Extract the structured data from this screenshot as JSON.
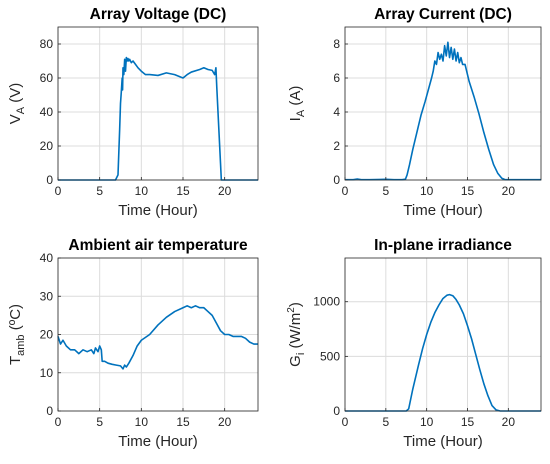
{
  "figure": {
    "background": "#ffffff",
    "line_color": "#0072BD",
    "grid": true
  },
  "chart_data": [
    {
      "type": "line",
      "title": "Array Voltage (DC)",
      "xlabel": "Time (Hour)",
      "ylabel_main": "V",
      "ylabel_sub": "A",
      "ylabel_tail": " (V)",
      "xlim": [
        0,
        24
      ],
      "ylim": [
        0,
        90
      ],
      "xticks": [
        0,
        5,
        10,
        15,
        20
      ],
      "yticks": [
        0,
        20,
        40,
        60,
        80
      ],
      "series": [
        {
          "values": [
            [
              0,
              0
            ],
            [
              6.9,
              0
            ],
            [
              7.2,
              3
            ],
            [
              7.4,
              30
            ],
            [
              7.5,
              45
            ],
            [
              7.6,
              52
            ],
            [
              7.7,
              60
            ],
            [
              7.75,
              53
            ],
            [
              7.8,
              66
            ],
            [
              7.9,
              62
            ],
            [
              8.0,
              71
            ],
            [
              8.1,
              64
            ],
            [
              8.2,
              72
            ],
            [
              8.3,
              70
            ],
            [
              8.4,
              71.5
            ],
            [
              8.5,
              70
            ],
            [
              8.6,
              71
            ],
            [
              8.8,
              69
            ],
            [
              9.0,
              70
            ],
            [
              9.3,
              68
            ],
            [
              9.6,
              66
            ],
            [
              10,
              64
            ],
            [
              10.5,
              62
            ],
            [
              11,
              62
            ],
            [
              12,
              61.5
            ],
            [
              13,
              63
            ],
            [
              14,
              62
            ],
            [
              15,
              60
            ],
            [
              15.5,
              62
            ],
            [
              16,
              63.5
            ],
            [
              17,
              65
            ],
            [
              17.5,
              66
            ],
            [
              18,
              65
            ],
            [
              18.5,
              64.5
            ],
            [
              18.8,
              62
            ],
            [
              18.95,
              66
            ],
            [
              19.05,
              55
            ],
            [
              19.15,
              45
            ],
            [
              19.3,
              30
            ],
            [
              19.5,
              10
            ],
            [
              19.6,
              0
            ],
            [
              24,
              0
            ]
          ]
        }
      ]
    },
    {
      "type": "line",
      "title": "Array Current (DC)",
      "xlabel": "Time (Hour)",
      "ylabel_main": "I",
      "ylabel_sub": "A",
      "ylabel_tail": " (A)",
      "xlim": [
        0,
        24
      ],
      "ylim": [
        0,
        9
      ],
      "xticks": [
        0,
        5,
        10,
        15,
        20
      ],
      "yticks": [
        0,
        2,
        4,
        6,
        8
      ],
      "series": [
        {
          "values": [
            [
              0,
              0.02
            ],
            [
              1,
              0.02
            ],
            [
              1.5,
              0.06
            ],
            [
              2,
              0.02
            ],
            [
              3,
              0.02
            ],
            [
              5,
              0.04
            ],
            [
              6,
              0.02
            ],
            [
              7,
              0.02
            ],
            [
              7.4,
              0.05
            ],
            [
              7.6,
              0.3
            ],
            [
              7.9,
              0.9
            ],
            [
              8.3,
              1.8
            ],
            [
              8.8,
              2.8
            ],
            [
              9.3,
              3.8
            ],
            [
              9.8,
              4.6
            ],
            [
              10.2,
              5.3
            ],
            [
              10.6,
              6.0
            ],
            [
              10.8,
              6.4
            ],
            [
              11.0,
              7.0
            ],
            [
              11.2,
              6.8
            ],
            [
              11.4,
              7.5
            ],
            [
              11.6,
              7.1
            ],
            [
              11.8,
              7.4
            ],
            [
              12.0,
              7.0
            ],
            [
              12.2,
              7.9
            ],
            [
              12.4,
              7.3
            ],
            [
              12.6,
              8.1
            ],
            [
              12.8,
              7.2
            ],
            [
              13.0,
              7.8
            ],
            [
              13.2,
              7.1
            ],
            [
              13.4,
              7.7
            ],
            [
              13.6,
              7.0
            ],
            [
              13.8,
              7.5
            ],
            [
              14.0,
              6.9
            ],
            [
              14.2,
              7.2
            ],
            [
              14.4,
              6.8
            ],
            [
              14.7,
              6.8
            ],
            [
              15.2,
              5.8
            ],
            [
              15.8,
              4.9
            ],
            [
              16.4,
              3.9
            ],
            [
              17.0,
              2.8
            ],
            [
              17.6,
              1.8
            ],
            [
              18.2,
              0.9
            ],
            [
              18.7,
              0.4
            ],
            [
              19.2,
              0.1
            ],
            [
              19.6,
              0.02
            ],
            [
              24,
              0.02
            ]
          ]
        }
      ]
    },
    {
      "type": "line",
      "title": "Ambient air temperature",
      "xlabel": "Time (Hour)",
      "ylabel_main": "T",
      "ylabel_sub": "amb",
      "ylabel_tail": " (ºC)",
      "xlim": [
        0,
        24
      ],
      "ylim": [
        0,
        40
      ],
      "xticks": [
        0,
        5,
        10,
        15,
        20
      ],
      "yticks": [
        0,
        10,
        20,
        30,
        40
      ],
      "series": [
        {
          "values": [
            [
              0,
              19.5
            ],
            [
              0.3,
              17.5
            ],
            [
              0.6,
              18.5
            ],
            [
              1,
              17
            ],
            [
              1.5,
              16
            ],
            [
              2,
              16
            ],
            [
              2.5,
              15
            ],
            [
              3,
              16
            ],
            [
              3.5,
              15.5
            ],
            [
              4,
              16
            ],
            [
              4.3,
              15
            ],
            [
              4.5,
              16.5
            ],
            [
              4.8,
              15.5
            ],
            [
              5,
              17
            ],
            [
              5.2,
              16
            ],
            [
              5.3,
              13
            ],
            [
              5.6,
              13
            ],
            [
              6,
              12.5
            ],
            [
              6.5,
              12.2
            ],
            [
              7,
              12
            ],
            [
              7.5,
              11.8
            ],
            [
              7.8,
              11
            ],
            [
              8,
              12
            ],
            [
              8.2,
              11.5
            ],
            [
              8.5,
              12.5
            ],
            [
              9,
              14.5
            ],
            [
              9.5,
              17
            ],
            [
              10,
              18.5
            ],
            [
              11,
              20
            ],
            [
              12,
              22.5
            ],
            [
              13,
              24.5
            ],
            [
              14,
              26
            ],
            [
              15,
              27
            ],
            [
              15.5,
              27.5
            ],
            [
              16,
              27
            ],
            [
              16.5,
              27.5
            ],
            [
              17,
              27
            ],
            [
              17.5,
              27
            ],
            [
              18,
              26
            ],
            [
              18.5,
              25
            ],
            [
              19,
              23
            ],
            [
              19.5,
              21
            ],
            [
              20,
              20
            ],
            [
              20.5,
              20
            ],
            [
              21,
              19.5
            ],
            [
              22,
              19.5
            ],
            [
              22.5,
              19
            ],
            [
              23,
              18
            ],
            [
              23.5,
              17.5
            ],
            [
              24,
              17.5
            ]
          ]
        }
      ]
    },
    {
      "type": "line",
      "title": "In-plane irradiance",
      "xlabel": "Time (Hour)",
      "ylabel_main": "G",
      "ylabel_sub": "i",
      "ylabel_tail": " (W/m",
      "ylabel_sup": "2",
      "ylabel_close": ")",
      "xlim": [
        0,
        24
      ],
      "ylim": [
        0,
        1400
      ],
      "xticks": [
        0,
        5,
        10,
        15,
        20
      ],
      "yticks": [
        0,
        500,
        1000
      ],
      "series": [
        {
          "values": [
            [
              0,
              0
            ],
            [
              7.5,
              0
            ],
            [
              7.8,
              20
            ],
            [
              8.3,
              200
            ],
            [
              9,
              420
            ],
            [
              9.5,
              570
            ],
            [
              10,
              700
            ],
            [
              10.5,
              810
            ],
            [
              11,
              900
            ],
            [
              11.5,
              970
            ],
            [
              12,
              1030
            ],
            [
              12.5,
              1060
            ],
            [
              12.8,
              1065
            ],
            [
              13.2,
              1055
            ],
            [
              13.6,
              1020
            ],
            [
              14,
              970
            ],
            [
              14.5,
              890
            ],
            [
              15,
              780
            ],
            [
              15.5,
              660
            ],
            [
              16,
              520
            ],
            [
              16.5,
              380
            ],
            [
              17,
              250
            ],
            [
              17.5,
              140
            ],
            [
              18,
              50
            ],
            [
              18.5,
              10
            ],
            [
              19,
              0
            ],
            [
              24,
              0
            ]
          ]
        }
      ]
    }
  ]
}
